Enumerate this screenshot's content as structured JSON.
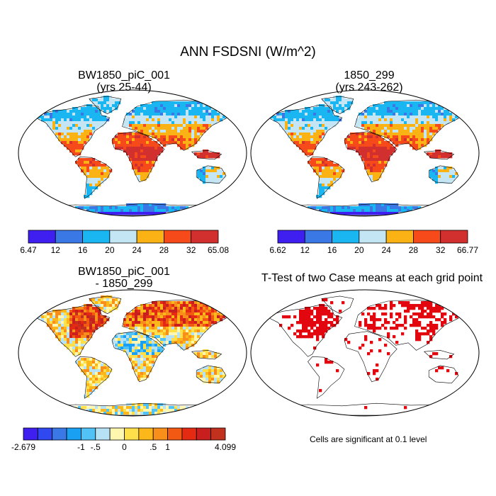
{
  "title": "ANN FSDSNI (W/m^2)",
  "panels": [
    {
      "title_line1": "BW1850_piC_001",
      "title_line2": "(yrs 25-44)"
    },
    {
      "title_line1": "1850_299",
      "title_line2": "(yrs 243-262)"
    },
    {
      "title_line1": "BW1850_piC_001",
      "title_line2": "- 1850_299"
    },
    {
      "title_line1": "T-Test of two Case means at each grid point",
      "title_line2": ""
    }
  ],
  "colors": {
    "seq": [
      "#3f1ff0",
      "#3a78e6",
      "#1ab6f2",
      "#c4e6f4",
      "#fbb214",
      "#f74a1a",
      "#d22f2f"
    ],
    "div": [
      "#3f1ff0",
      "#2f48f0",
      "#3a78e6",
      "#1aa0f2",
      "#50c2f5",
      "#b7e2f6",
      "#fff7b0",
      "#ffe04a",
      "#fcb81a",
      "#f88f1a",
      "#f25a14",
      "#e52a14",
      "#c91e1e",
      "#c2301e"
    ],
    "ttest": "#e2070f"
  },
  "colorbars": [
    {
      "labels": [
        "6.47",
        "12",
        "16",
        "20",
        "24",
        "28",
        "32",
        "65.08"
      ]
    },
    {
      "labels": [
        "6.62",
        "12",
        "16",
        "20",
        "24",
        "28",
        "32",
        "66.77"
      ]
    },
    {
      "labels": [
        "-2.679",
        "-1",
        "-.5",
        "0",
        ".5",
        "1",
        "4.099"
      ]
    }
  ],
  "note": "Cells are significant at 0.1 level",
  "chart_data": [
    {
      "type": "heatmap",
      "title": "BW1850_piC_001 (yrs 25-44)",
      "variable": "ANN FSDSNI (W/m^2)",
      "projection": "Robinson",
      "min": 6.47,
      "max": 65.08,
      "contour_levels": [
        12,
        16,
        20,
        24,
        28,
        32
      ]
    },
    {
      "type": "heatmap",
      "title": "1850_299 (yrs 243-262)",
      "variable": "ANN FSDSNI (W/m^2)",
      "projection": "Robinson",
      "min": 6.62,
      "max": 66.77,
      "contour_levels": [
        12,
        16,
        20,
        24,
        28,
        32
      ]
    },
    {
      "type": "heatmap",
      "title": "BW1850_piC_001 - 1850_299",
      "variable": "ANN FSDSNI (W/m^2)",
      "projection": "Robinson",
      "min": -2.679,
      "max": 4.099,
      "contour_levels": [
        -1,
        -0.5,
        0,
        0.5,
        1
      ]
    },
    {
      "type": "heatmap",
      "title": "T-Test of two Case means at each grid point",
      "significance_level": 0.1
    }
  ]
}
